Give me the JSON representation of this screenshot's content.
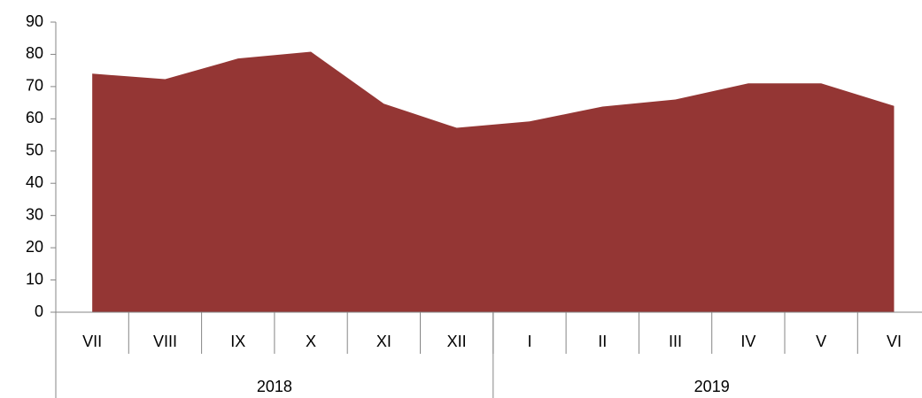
{
  "chart_data": {
    "type": "area",
    "groups": [
      {
        "name": "2018",
        "categories": [
          "VII",
          "VIII",
          "IX",
          "X",
          "XI",
          "XII"
        ]
      },
      {
        "name": "2019",
        "categories": [
          "I",
          "II",
          "III",
          "IV",
          "V",
          "VI"
        ]
      }
    ],
    "values": [
      74,
      72.3,
      78.7,
      80.8,
      64.7,
      57.2,
      59.2,
      63.8,
      66,
      71,
      71,
      64
    ],
    "color": "#943634",
    "ylim": [
      0,
      90
    ],
    "yticks": [
      0,
      10,
      20,
      30,
      40,
      50,
      60,
      70,
      80,
      90
    ],
    "grid": false
  }
}
